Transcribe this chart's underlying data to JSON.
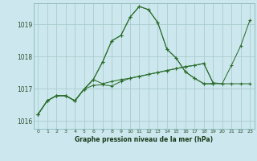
{
  "title": "Graphe pression niveau de la mer (hPa)",
  "bg_color": "#cce8ee",
  "grid_color": "#aacccc",
  "line_color": "#2d6e2d",
  "ylim": [
    1015.75,
    1019.65
  ],
  "yticks": [
    1016,
    1017,
    1018,
    1019
  ],
  "xlim": [
    -0.5,
    23.5
  ],
  "xticks": [
    0,
    1,
    2,
    3,
    4,
    5,
    6,
    7,
    8,
    9,
    10,
    11,
    12,
    13,
    14,
    15,
    16,
    17,
    18,
    19,
    20,
    21,
    22,
    23
  ],
  "series": [
    {
      "x": [
        0,
        1,
        2,
        3,
        4,
        5,
        6,
        7,
        8,
        9,
        10,
        11,
        12,
        13,
        14,
        15,
        16,
        17,
        18,
        19,
        20,
        21,
        22,
        23
      ],
      "y": [
        1016.2,
        1016.62,
        1016.78,
        1016.78,
        1016.62,
        1016.98,
        1017.1,
        1017.12,
        1017.08,
        1017.22,
        1017.32,
        1017.38,
        1017.44,
        1017.5,
        1017.56,
        1017.62,
        1017.68,
        1017.72,
        1017.78,
        1017.18,
        1017.15,
        1017.15,
        1017.15,
        1017.15
      ]
    },
    {
      "x": [
        0,
        1,
        2,
        3,
        4,
        5,
        6,
        7,
        8,
        9,
        10,
        11,
        12,
        13,
        14,
        15,
        16,
        17,
        18,
        19
      ],
      "y": [
        1016.2,
        1016.62,
        1016.78,
        1016.78,
        1016.62,
        1016.98,
        1017.28,
        1017.82,
        1018.48,
        1018.65,
        1019.22,
        1019.55,
        1019.45,
        1019.05,
        1018.22,
        1017.95,
        1017.52,
        1017.32,
        1017.15,
        1017.15
      ]
    },
    {
      "x": [
        0,
        1,
        2,
        3,
        4,
        5,
        6,
        7,
        8,
        9,
        10,
        11,
        12,
        13,
        14,
        15,
        16,
        17,
        18,
        19,
        20,
        21,
        22,
        23
      ],
      "y": [
        1016.2,
        1016.62,
        1016.78,
        1016.78,
        1016.62,
        1016.98,
        1017.28,
        1017.82,
        1018.48,
        1018.65,
        1019.22,
        1019.55,
        1019.45,
        1019.05,
        1018.22,
        1017.95,
        1017.52,
        1017.32,
        1017.15,
        1017.15,
        1017.15,
        1017.72,
        1018.32,
        1019.12
      ]
    },
    {
      "x": [
        0,
        1,
        2,
        3,
        4,
        5,
        6,
        7,
        8,
        9,
        10,
        11,
        12,
        13,
        14,
        15,
        16,
        17,
        18,
        19
      ],
      "y": [
        1016.2,
        1016.62,
        1016.78,
        1016.78,
        1016.62,
        1016.98,
        1017.28,
        1017.15,
        1017.22,
        1017.28,
        1017.32,
        1017.38,
        1017.44,
        1017.5,
        1017.56,
        1017.62,
        1017.68,
        1017.72,
        1017.78,
        1017.18
      ]
    }
  ]
}
